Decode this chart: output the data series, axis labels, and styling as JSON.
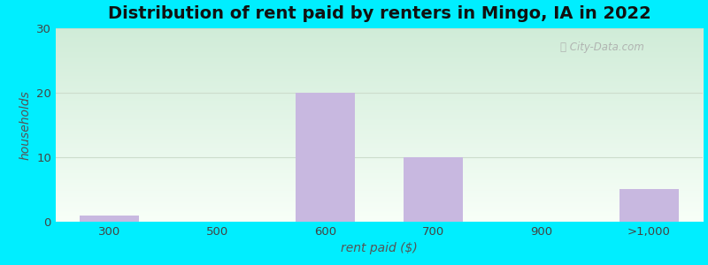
{
  "title": "Distribution of rent paid by renters in Mingo, IA in 2022",
  "xlabel": "rent paid ($)",
  "ylabel": "households",
  "categories": [
    "300",
    "500",
    "600",
    "700",
    "900",
    ">1,000"
  ],
  "values": [
    1,
    0,
    20,
    10,
    0,
    5
  ],
  "bar_color": "#c8b8e0",
  "ylim": [
    0,
    30
  ],
  "yticks": [
    0,
    10,
    20,
    30
  ],
  "background_outer": "#00eeff",
  "background_inner_top": "#d0ecd8",
  "background_inner_bottom": "#f8fff8",
  "title_fontsize": 14,
  "axis_label_fontsize": 10,
  "tick_fontsize": 9.5,
  "watermark": "City-Data.com",
  "grid_color": "#ccddcc",
  "bar_width": 0.55
}
